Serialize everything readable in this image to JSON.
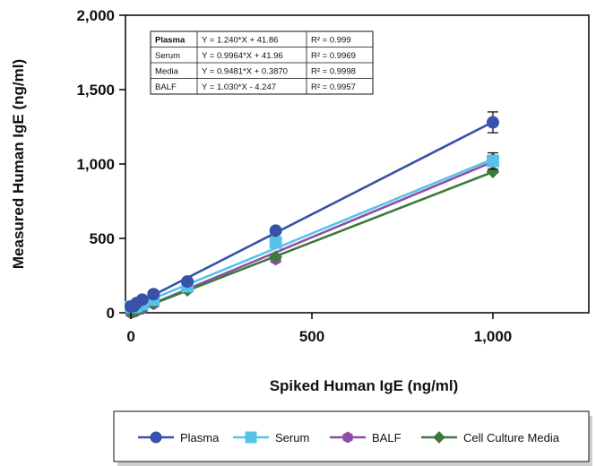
{
  "chart_data": {
    "type": "line",
    "title": "",
    "xlabel": "Spiked Human IgE (ng/ml)",
    "ylabel": "Measured Human IgE (ng/ml)",
    "xlim": [
      -15,
      1265
    ],
    "ylim": [
      0,
      2000
    ],
    "x_ticks": [
      {
        "value": 0,
        "label": "0"
      },
      {
        "value": 500,
        "label": "500"
      },
      {
        "value": 1000,
        "label": "1,000"
      }
    ],
    "y_ticks": [
      {
        "value": 0,
        "label": "0"
      },
      {
        "value": 500,
        "label": "500"
      },
      {
        "value": 1000,
        "label": "1,000"
      },
      {
        "value": 1500,
        "label": "1,500"
      },
      {
        "value": 2000,
        "label": "2,000"
      }
    ],
    "grid": false,
    "legend_position": "bottom",
    "series": [
      {
        "name": "Plasma",
        "color": "#3752a8",
        "marker": "circle",
        "x": [
          0,
          7.8,
          15.6,
          31.3,
          62.5,
          156,
          400,
          1000
        ],
        "y": [
          42,
          45,
          65,
          88,
          125,
          210,
          552,
          1280
        ],
        "err": [
          0,
          0,
          0,
          0,
          0,
          0,
          0,
          70
        ],
        "fit_label": "Plasma",
        "fit_eq": "Y = 1.240*X + 41.86",
        "fit_r2": "R² = 0.999"
      },
      {
        "name": "Serum",
        "color": "#58c3e8",
        "marker": "square",
        "x": [
          0,
          7.8,
          15.6,
          31.3,
          62.5,
          156,
          400,
          1000
        ],
        "y": [
          38,
          40,
          45,
          58,
          88,
          178,
          472,
          1020
        ],
        "err": [
          0,
          0,
          0,
          0,
          0,
          0,
          0,
          55
        ],
        "fit_label": "Serum",
        "fit_eq": "Y = 0.9964*X + 41.96",
        "fit_r2": "R² = 0.9969"
      },
      {
        "name": "BALF",
        "color": "#8e4fa6",
        "marker": "hexagon",
        "x": [
          0,
          7.8,
          15.6,
          31.3,
          62.5,
          156,
          400,
          1000
        ],
        "y": [
          0,
          5,
          12,
          28,
          60,
          158,
          360,
          1030
        ],
        "err": [
          0,
          0,
          0,
          0,
          0,
          0,
          0,
          0
        ],
        "fit_label": "BALF",
        "fit_eq": "Y = 1.030*X - 4.247",
        "fit_r2": "R² = 0.9957"
      },
      {
        "name": "Cell Culture Media",
        "color": "#3d7a3a",
        "marker": "diamond",
        "x": [
          0,
          7.8,
          15.6,
          31.3,
          62.5,
          156,
          400,
          1000
        ],
        "y": [
          2,
          8,
          16,
          32,
          62,
          152,
          375,
          948
        ],
        "err": [
          0,
          0,
          0,
          0,
          0,
          0,
          0,
          0
        ],
        "fit_label": "Media",
        "fit_eq": "Y = 0.9481*X + 0.3870",
        "fit_r2": "R² = 0.9998"
      }
    ],
    "equation_table": [
      {
        "label": "Plasma",
        "equation": "Y = 1.240*X + 41.86",
        "r2": "R² = 0.999"
      },
      {
        "label": "Serum",
        "equation": "Y = 0.9964*X + 41.96",
        "r2": "R² = 0.9969"
      },
      {
        "label": "Media",
        "equation": "Y = 0.9481*X + 0.3870",
        "r2": "R² = 0.9998"
      },
      {
        "label": "BALF",
        "equation": "Y = 1.030*X - 4.247",
        "r2": "R² = 0.9957"
      }
    ]
  }
}
